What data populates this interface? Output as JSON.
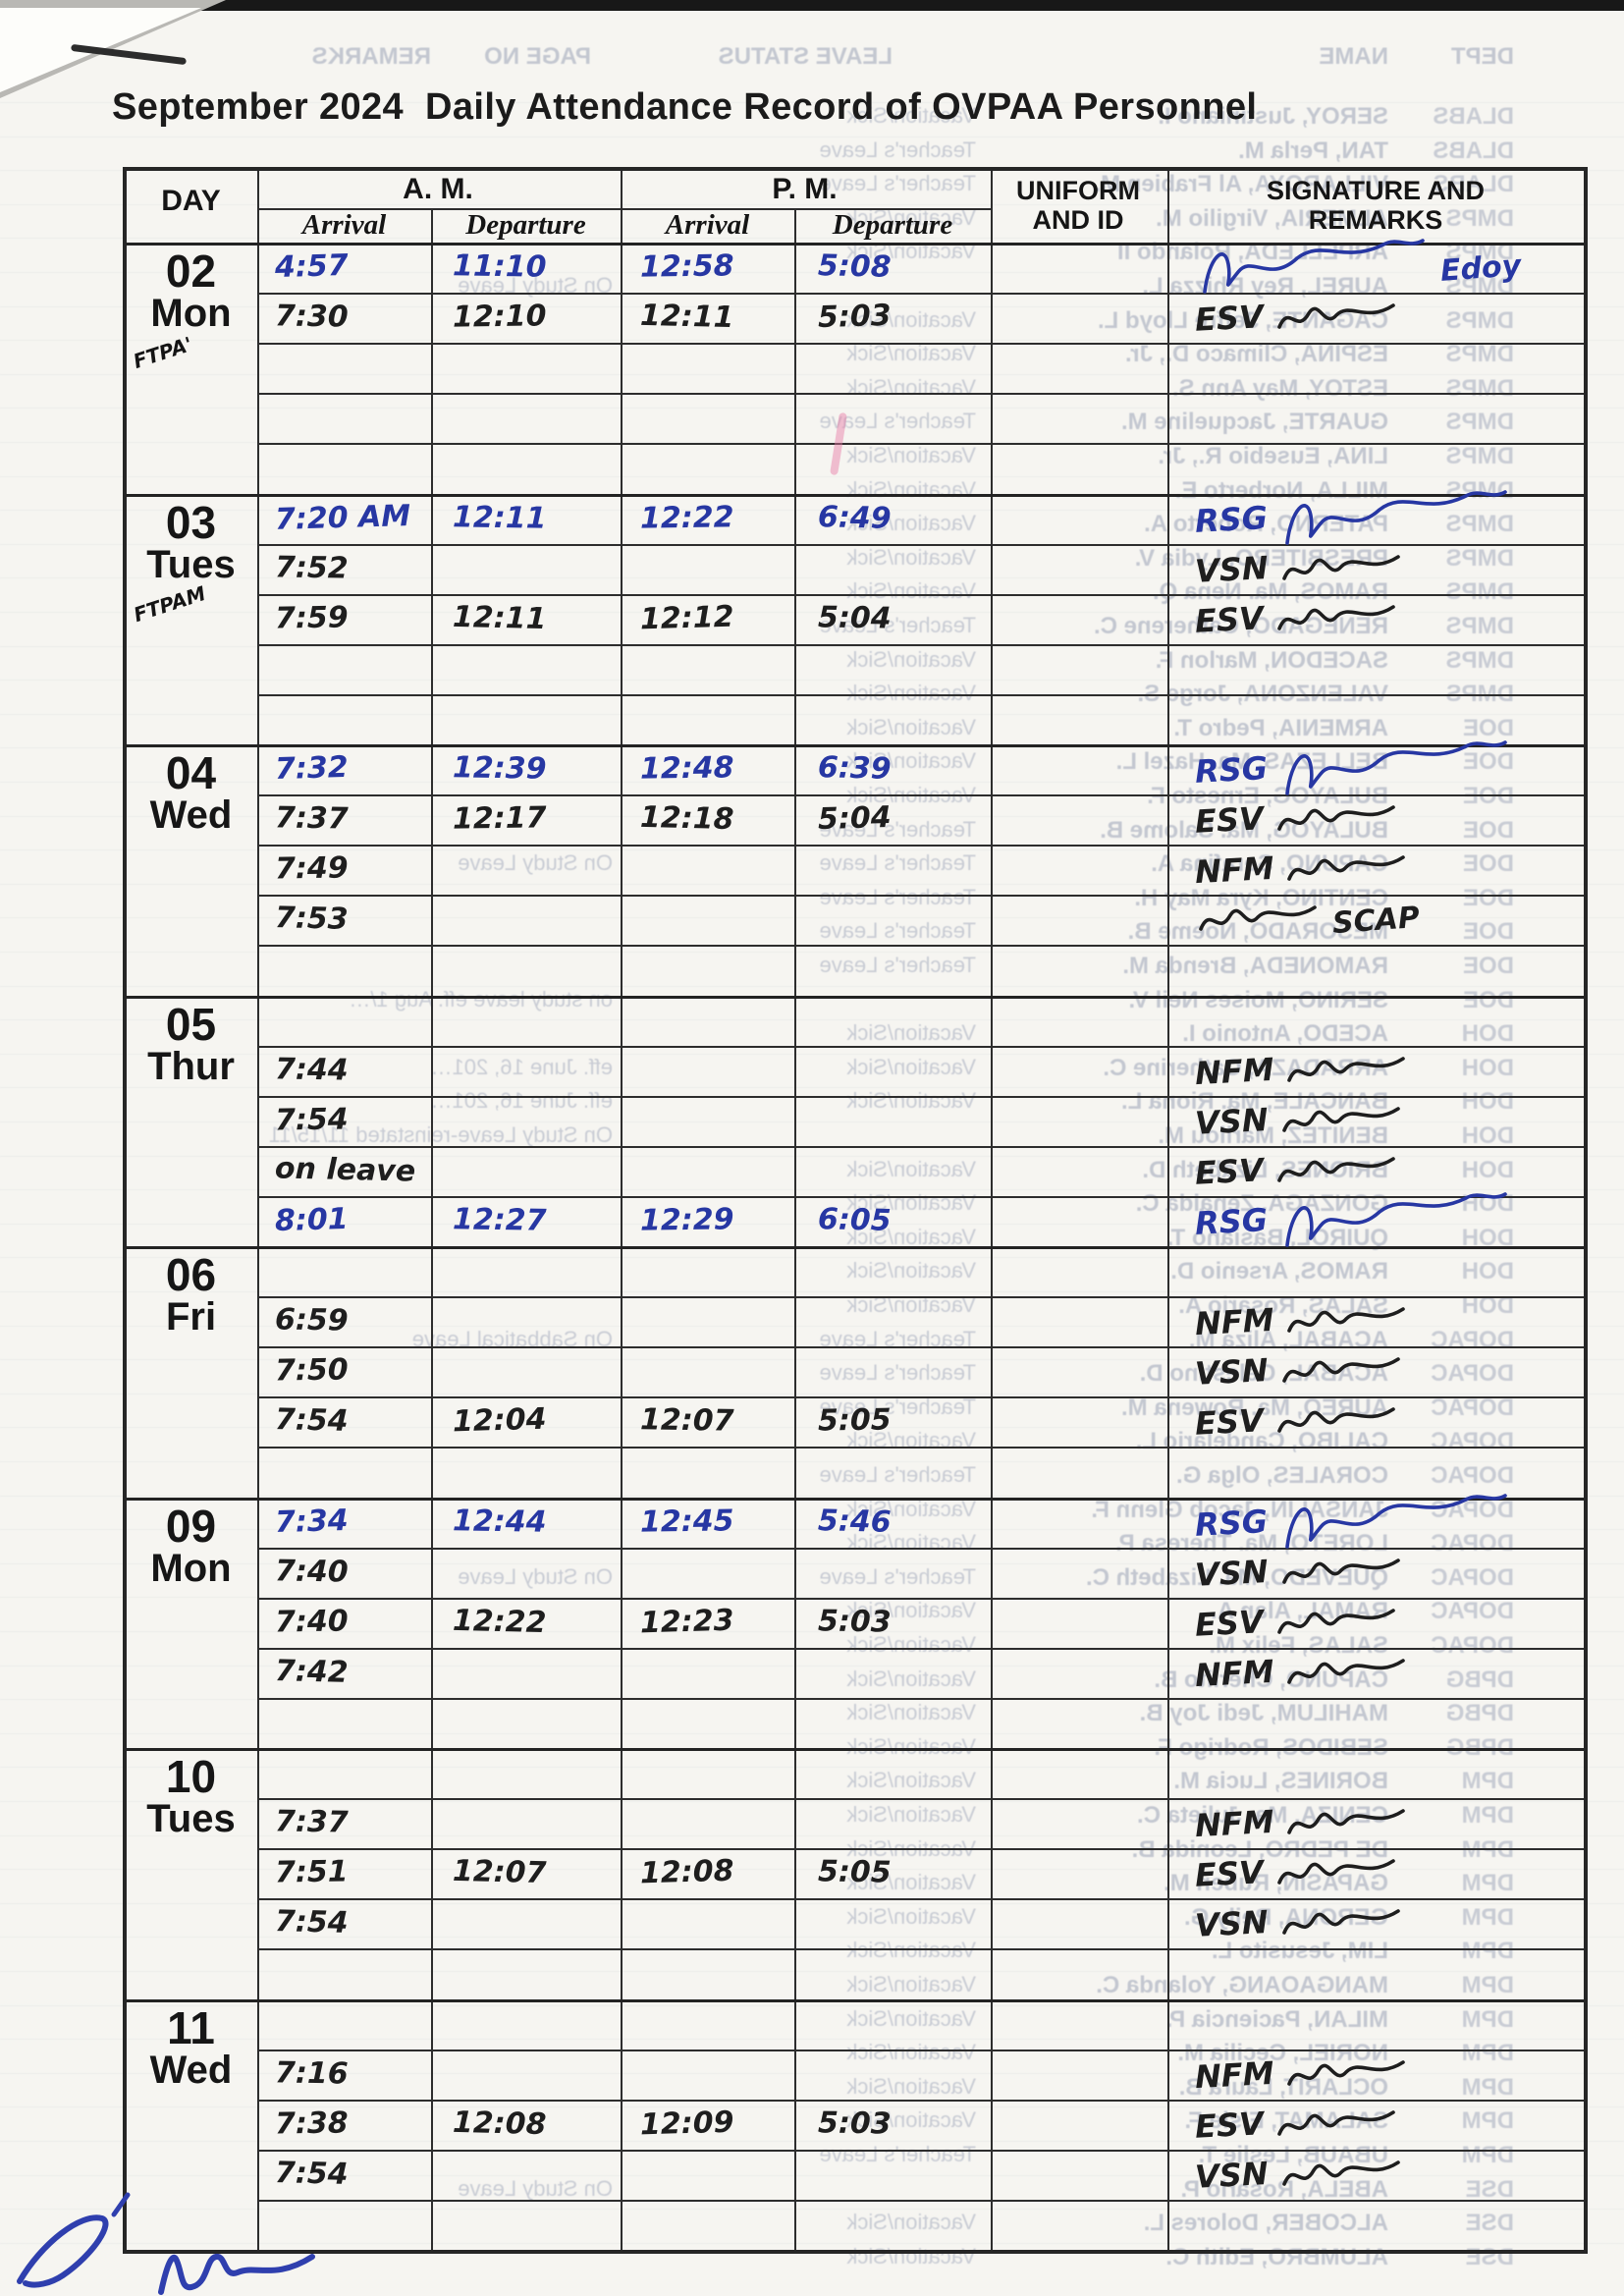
{
  "document": {
    "title": "September 2024  Daily Attendance Record of OVPAA Personnel"
  },
  "table": {
    "headers": {
      "day": "DAY",
      "am": "A. M.",
      "pm": "P. M.",
      "arrival": "Arrival",
      "departure": "Departure",
      "uniform": "UNIFORM\nAND ID",
      "signature": "SIGNATURE AND\nREMARKS"
    },
    "days": [
      {
        "date": "02",
        "weekday": "Mon",
        "annotation": "FTPA'",
        "rows": [
          {
            "ink": "blue",
            "times": [
              "4:57",
              "11:10",
              "12:58",
              "5:08"
            ],
            "signature": {
              "ink": "blue",
              "initials": "",
              "note": "Edoy",
              "flourish": true
            }
          },
          {
            "ink": "black",
            "times": [
              "7:30",
              "12:10",
              "12:11",
              "5:03"
            ],
            "signature": {
              "ink": "black",
              "initials": "ESV"
            }
          },
          null,
          null,
          null
        ]
      },
      {
        "date": "03",
        "weekday": "Tues",
        "annotation": "FTPAM",
        "rows": [
          {
            "ink": "blue",
            "times": [
              "7:20 AM",
              "12:11",
              "12:22",
              "6:49"
            ],
            "signature": {
              "ink": "blue",
              "initials": "RSG",
              "flourish": true
            }
          },
          {
            "ink": "black",
            "times": [
              "7:52",
              "",
              "",
              ""
            ],
            "signature": {
              "ink": "black",
              "initials": "VSN"
            }
          },
          {
            "ink": "black",
            "times": [
              "7:59",
              "12:11",
              "12:12",
              "5:04"
            ],
            "signature": {
              "ink": "black",
              "initials": "ESV"
            }
          },
          null,
          null
        ]
      },
      {
        "date": "04",
        "weekday": "Wed",
        "annotation": "",
        "rows": [
          {
            "ink": "blue",
            "times": [
              "7:32",
              "12:39",
              "12:48",
              "6:39"
            ],
            "signature": {
              "ink": "blue",
              "initials": "RSG",
              "flourish": true
            }
          },
          {
            "ink": "black",
            "times": [
              "7:37",
              "12:17",
              "12:18",
              "5:04"
            ],
            "signature": {
              "ink": "black",
              "initials": "ESV"
            }
          },
          {
            "ink": "black",
            "times": [
              "7:49",
              "",
              "",
              ""
            ],
            "signature": {
              "ink": "black",
              "initials": "NFM"
            }
          },
          {
            "ink": "black",
            "times": [
              "7:53",
              "",
              "",
              ""
            ],
            "signature": {
              "ink": "black",
              "initials": "",
              "note": "SCAP"
            }
          },
          null
        ]
      },
      {
        "date": "05",
        "weekday": "Thur",
        "annotation": "",
        "rows": [
          null,
          {
            "ink": "black",
            "times": [
              "7:44",
              "",
              "",
              ""
            ],
            "signature": {
              "ink": "black",
              "initials": "NFM"
            }
          },
          {
            "ink": "black",
            "times": [
              "7:54",
              "",
              "",
              ""
            ],
            "signature": {
              "ink": "black",
              "initials": "VSN"
            }
          },
          {
            "ink": "black",
            "times": [
              "on leave",
              "",
              "",
              ""
            ],
            "signature": {
              "ink": "black",
              "initials": "ESV"
            }
          },
          {
            "ink": "blue",
            "times": [
              "8:01",
              "12:27",
              "12:29",
              "6:05"
            ],
            "signature": {
              "ink": "blue",
              "initials": "RSG",
              "flourish": true
            }
          }
        ]
      },
      {
        "date": "06",
        "weekday": "Fri",
        "annotation": "",
        "rows": [
          null,
          {
            "ink": "black",
            "times": [
              "6:59",
              "",
              "",
              ""
            ],
            "signature": {
              "ink": "black",
              "initials": "NFM"
            }
          },
          {
            "ink": "black",
            "times": [
              "7:50",
              "",
              "",
              ""
            ],
            "signature": {
              "ink": "black",
              "initials": "VSN"
            }
          },
          {
            "ink": "black",
            "times": [
              "7:54",
              "12:04",
              "12:07",
              "5:05"
            ],
            "signature": {
              "ink": "black",
              "initials": "ESV"
            }
          },
          null
        ]
      },
      {
        "date": "09",
        "weekday": "Mon",
        "annotation": "",
        "rows": [
          {
            "ink": "blue",
            "times": [
              "7:34",
              "12:44",
              "12:45",
              "5:46"
            ],
            "signature": {
              "ink": "blue",
              "initials": "RSG",
              "flourish": true
            }
          },
          {
            "ink": "black",
            "times": [
              "7:40",
              "",
              "",
              ""
            ],
            "signature": {
              "ink": "black",
              "initials": "VSN"
            }
          },
          {
            "ink": "black",
            "times": [
              "7:40",
              "12:22",
              "12:23",
              "5:03"
            ],
            "signature": {
              "ink": "black",
              "initials": "ESV"
            }
          },
          {
            "ink": "black",
            "times": [
              "7:42",
              "",
              "",
              ""
            ],
            "signature": {
              "ink": "black",
              "initials": "NFM"
            }
          },
          null
        ]
      },
      {
        "date": "10",
        "weekday": "Tues",
        "annotation": "",
        "rows": [
          null,
          {
            "ink": "black",
            "times": [
              "7:37",
              "",
              "",
              ""
            ],
            "signature": {
              "ink": "black",
              "initials": "NFM"
            }
          },
          {
            "ink": "black",
            "times": [
              "7:51",
              "12:07",
              "12:08",
              "5:05"
            ],
            "signature": {
              "ink": "black",
              "initials": "ESV"
            }
          },
          {
            "ink": "black",
            "times": [
              "7:54",
              "",
              "",
              ""
            ],
            "signature": {
              "ink": "black",
              "initials": "VSN"
            }
          },
          null
        ]
      },
      {
        "date": "11",
        "weekday": "Wed",
        "annotation": "",
        "rows": [
          null,
          {
            "ink": "black",
            "times": [
              "7:16",
              "",
              "",
              ""
            ],
            "signature": {
              "ink": "black",
              "initials": "NFM"
            }
          },
          {
            "ink": "black",
            "times": [
              "7:38",
              "12:08",
              "12:09",
              "5:03"
            ],
            "signature": {
              "ink": "black",
              "initials": "ESV"
            }
          },
          {
            "ink": "black",
            "times": [
              "7:54",
              "",
              "",
              ""
            ],
            "signature": {
              "ink": "black",
              "initials": "VSN"
            }
          },
          null
        ]
      }
    ]
  },
  "bleed_through": {
    "header": [
      "DEPT",
      "NAME",
      "LEAVE STATUS",
      "PAGE NO",
      "REMARKS"
    ],
    "rows": [
      {
        "dept": "DLABS",
        "name": "SEROY, Justiniano I.",
        "status": "Vacation/Sick"
      },
      {
        "dept": "DLABS",
        "name": "TAN, Perla M.",
        "status": "Teacher's Leave"
      },
      {
        "dept": "DLABS",
        "name": "VILLAROYA, Al Frabien M.",
        "status": "Teacher's Leave"
      },
      {
        "dept": "DMPS",
        "name": "ALMERIA, Virgilio M.",
        "status": "Vacation/Sick"
      },
      {
        "dept": "DMPS",
        "name": "ARPELLEDA, Rolando II",
        "status": "Vacation/Sick"
      },
      {
        "dept": "DMPS",
        "name": "AUREL, Rey Rhizza L.",
        "status": "",
        "remark": "On Study Leave"
      },
      {
        "dept": "DMPS",
        "name": "CAGANTE, Jeffre Lloyd L.",
        "status": "Vacation/Sick"
      },
      {
        "dept": "DMPS",
        "name": "ESPINA, Climaco D., Jr.",
        "status": "Vacation/Sick"
      },
      {
        "dept": "DMPS",
        "name": "ESTOY, May Ann S.",
        "status": "Vacation/Sick"
      },
      {
        "dept": "DMPS",
        "name": "GUARTE, Jacqueline M.",
        "status": "Teacher's Leave"
      },
      {
        "dept": "DMPS",
        "name": "LINA, Eusebio R., Jr.",
        "status": "Vacation/Sick"
      },
      {
        "dept": "DMPS",
        "name": "MILLA, Norberto E.",
        "status": "Vacation/Sick"
      },
      {
        "dept": "DMPS",
        "name": "PATERNO, Roberto A.",
        "status": "Vacation/Sick"
      },
      {
        "dept": "DMPS",
        "name": "PRESBITERO, Lydia V.",
        "status": "Vacation/Sick"
      },
      {
        "dept": "DMPS",
        "name": "RAMOS, Ma. Nena Q.",
        "status": "Vacation/Sick"
      },
      {
        "dept": "DMPS",
        "name": "RENEGADO, Catherene C.",
        "status": "Teacher's Leave"
      },
      {
        "dept": "DMPS",
        "name": "SACEDON, Marlon F.",
        "status": "Vacation/Sick"
      },
      {
        "dept": "DMPS",
        "name": "VALENZONA, Jorge S.",
        "status": "Vacation/Sick"
      },
      {
        "dept": "DOE",
        "name": "ARMENIA, Pedro T.",
        "status": "Vacation/Sick"
      },
      {
        "dept": "DOE",
        "name": "BELLEZAS, Ma. Hazel L.",
        "status": "Vacation/Sick"
      },
      {
        "dept": "DOE",
        "name": "BULAYOG, Ernesto F.",
        "status": "Vacation/Sick"
      },
      {
        "dept": "DOE",
        "name": "BULAYOG, Ma. Salome B.",
        "status": "Teacher's Leave"
      },
      {
        "dept": "DOE",
        "name": "CAPUNO, Serafina A.",
        "status": "Teacher's Leave",
        "remark": "On Study Leave"
      },
      {
        "dept": "DOE",
        "name": "CENTINO, Kyra May H.",
        "status": "Teacher's Leave"
      },
      {
        "dept": "DOE",
        "name": "MESORADO, Noeme B.",
        "status": "Teacher's Leave"
      },
      {
        "dept": "DOE",
        "name": "RAMONEDA, Brenda M.",
        "status": "Teacher's Leave"
      },
      {
        "dept": "DOE",
        "name": "SERINO, Moises Neil V.",
        "status": "",
        "remark": "on study leave eff. Aug 1/…"
      },
      {
        "dept": "DOH",
        "name": "ACEDO, Antonio I.",
        "status": "Vacation/Sick"
      },
      {
        "dept": "DOH",
        "name": "ARRADAZA, Catherine C.",
        "status": "Vacation/Sick",
        "remark": "eff. June 16, 201…"
      },
      {
        "dept": "DOH",
        "name": "BANCALE, Ma. Riona L.",
        "status": "Vacation/Sick",
        "remark": "eff. June 16, 201…"
      },
      {
        "dept": "DOH",
        "name": "BENITEZ, Marilou M.",
        "status": "",
        "remark": "On Study Leave-reinstated 11/15/11"
      },
      {
        "dept": "DOH",
        "name": "BRIONES, Lizabeth D.",
        "status": "Vacation/Sick"
      },
      {
        "dept": "DOH",
        "name": "GONZAGA, Zenaida C.",
        "status": "Vacation/Sick"
      },
      {
        "dept": "DOH",
        "name": "QUIROL, Basiano T.",
        "status": "Vacation/Sick"
      },
      {
        "dept": "DOH",
        "name": "RAMOS, Arsenio D.",
        "status": "Vacation/Sick"
      },
      {
        "dept": "DOH",
        "name": "SALAS, Rosario A.",
        "status": "Vacation/Sick"
      },
      {
        "dept": "DOPAC",
        "name": "ACABAL, Aliza M.",
        "status": "Teacher's Leave",
        "remark": "On Sabbatical Leave"
      },
      {
        "dept": "DOPAC",
        "name": "ACABAL, Celestino D.",
        "status": "Teacher's Leave"
      },
      {
        "dept": "DOPAC",
        "name": "AUREO, Ma. Rowena M.",
        "status": "Teacher's Leave"
      },
      {
        "dept": "DOPAC",
        "name": "CALIBO, Candelario L.",
        "status": "Vacation/Sick"
      },
      {
        "dept": "DOPAC",
        "name": "CORALES, Olga G.",
        "status": "Teacher's Leave"
      },
      {
        "dept": "DOPAC",
        "name": "JANSALIN, Jacob Glenn F.",
        "status": "Vacation/Sick"
      },
      {
        "dept": "DOPAC",
        "name": "LORETO, Ma. Theresa P.",
        "status": "Vacation/Sick"
      },
      {
        "dept": "DOPAC",
        "name": "QUEVEDO, Ma. Lizabeth C.",
        "status": "Teacher's Leave",
        "remark": "On Study Leave"
      },
      {
        "dept": "DOPAC",
        "name": "RAMAL, Alan A.",
        "status": "Vacation/Sick"
      },
      {
        "dept": "DOPAC",
        "name": "SALAS, Felix M.",
        "status": "Vacation/Sick"
      },
      {
        "dept": "DPBG",
        "name": "CAPUNO, Cherlito B.",
        "status": "Vacation/Sick"
      },
      {
        "dept": "DPBG",
        "name": "MAHILUM, Jedi Joy B.",
        "status": "Vacation/Sick"
      },
      {
        "dept": "DPBG",
        "name": "SEBIDOS, Rodrigo F.",
        "status": "Vacation/Sick"
      },
      {
        "dept": "DPM",
        "name": "BORINES, Lucia M.",
        "status": "Vacation/Sick"
      },
      {
        "dept": "DPM",
        "name": "CENIZA, Ma. Julieta C.",
        "status": "Vacation/Sick"
      },
      {
        "dept": "DPM",
        "name": "DE PEDRO, Leonida B.",
        "status": "Vacation/Sick"
      },
      {
        "dept": "DPM",
        "name": "GAPASIN, Ruben M.",
        "status": "Vacation/Sick"
      },
      {
        "dept": "DPM",
        "name": "GERONA, Reily G.",
        "status": "Vacation/Sick"
      },
      {
        "dept": "DPM",
        "name": "LIM, Jesusito L.",
        "status": "Vacation/Sick"
      },
      {
        "dept": "DPM",
        "name": "MANGAOANG, Yolanda C.",
        "status": "Vacation/Sick"
      },
      {
        "dept": "DPM",
        "name": "MILAN, Paciencia P.",
        "status": "Vacation/Sick"
      },
      {
        "dept": "DPM",
        "name": "NORIEL, Cecilia M.",
        "status": "Vacation/Sick"
      },
      {
        "dept": "DPM",
        "name": "OCLARIT, Laura B.",
        "status": "Vacation/Sick"
      },
      {
        "dept": "DPM",
        "name": "SALAMAT, Elsie F.",
        "status": "Vacation/Sick"
      },
      {
        "dept": "DPM",
        "name": "UBAUB, Leslie T.",
        "status": "Teacher's Leave"
      },
      {
        "dept": "DSE",
        "name": "ABELA, Rosario P.",
        "status": "",
        "remark": "On Study Leave"
      },
      {
        "dept": "DSE",
        "name": "ALCOBER, Dolores L.",
        "status": "Vacation/Sick"
      },
      {
        "dept": "DSE",
        "name": "ALUMBRO, Edith C.",
        "status": "Vacation/Sick"
      }
    ]
  },
  "marginalia": {
    "pen_marks": [
      "blue-check-scribble",
      "blue-initial-scribble"
    ]
  },
  "colors": {
    "ink_blue": "#2737a3",
    "ink_black": "#1e1e1e",
    "bleed_gray": "#9aa2b6",
    "paper": "#f6f5f1"
  }
}
